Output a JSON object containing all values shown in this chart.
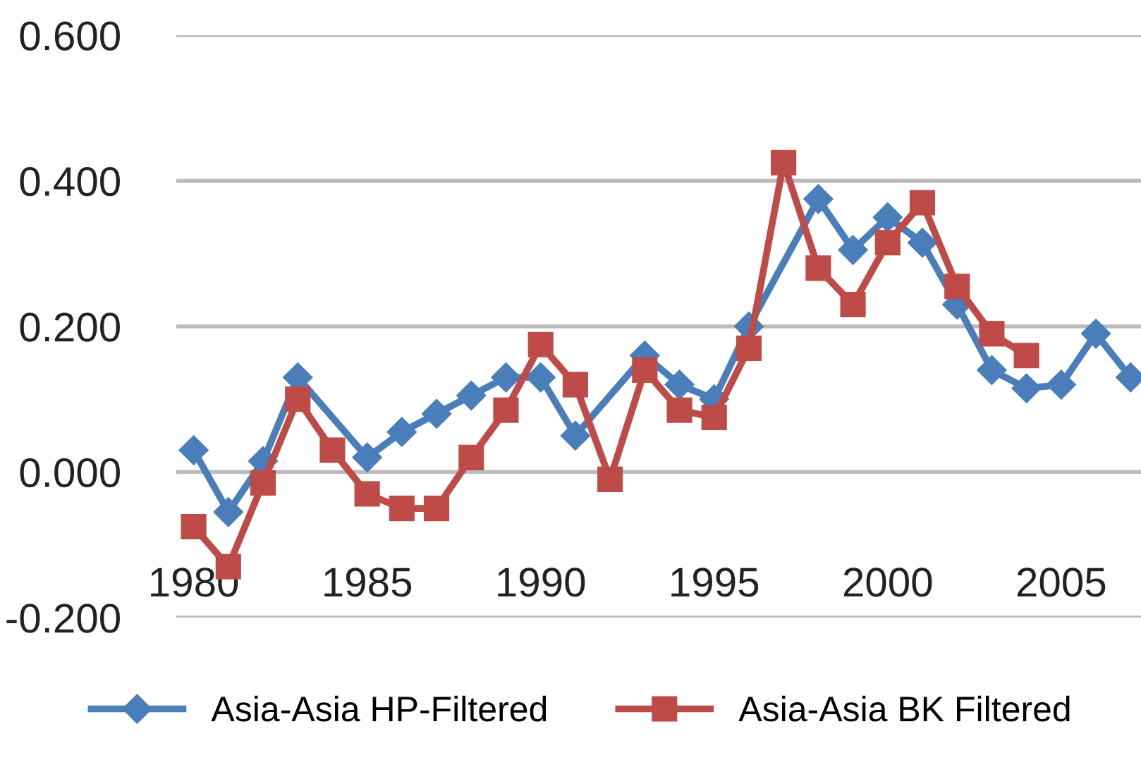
{
  "chart_data": {
    "type": "line",
    "categories": [
      "1980",
      null,
      null,
      null,
      null,
      "1985",
      null,
      null,
      null,
      null,
      "1990",
      null,
      null,
      null,
      null,
      "1995",
      null,
      null,
      null,
      null,
      "2000",
      null,
      null,
      null,
      null,
      "2005",
      null,
      null
    ],
    "series": [
      {
        "name": "Asia-Asia HP-Filtered",
        "color": "#4a7ebb",
        "marker": "diamond",
        "values": [
          0.03,
          -0.055,
          0.015,
          0.13,
          null,
          0.02,
          0.055,
          0.08,
          0.105,
          0.13,
          0.13,
          0.05,
          null,
          0.16,
          0.12,
          0.1,
          0.2,
          null,
          0.375,
          0.305,
          0.35,
          0.315,
          0.23,
          0.14,
          0.115,
          0.12,
          0.19,
          0.13
        ]
      },
      {
        "name": "Asia-Asia BK Filtered",
        "color": "#be4b48",
        "marker": "square",
        "values": [
          -0.075,
          -0.13,
          -0.015,
          0.1,
          0.03,
          -0.03,
          -0.05,
          -0.05,
          0.02,
          0.085,
          0.175,
          0.12,
          -0.01,
          0.14,
          0.085,
          0.075,
          0.17,
          0.425,
          0.28,
          0.23,
          0.315,
          0.37,
          0.255,
          0.19,
          0.16,
          null,
          null,
          null
        ]
      }
    ],
    "ylim": [
      -0.2,
      0.6
    ],
    "yticks": [
      {
        "value": -0.2,
        "label": "-0.200"
      },
      {
        "value": 0,
        "label": "0.000"
      },
      {
        "value": 0.2,
        "label": "0.200"
      },
      {
        "value": 0.4,
        "label": "0.400"
      },
      {
        "value": 0.6,
        "label": "0.600"
      }
    ],
    "grid": "y",
    "legend": "bottom",
    "line_style": "solid"
  }
}
